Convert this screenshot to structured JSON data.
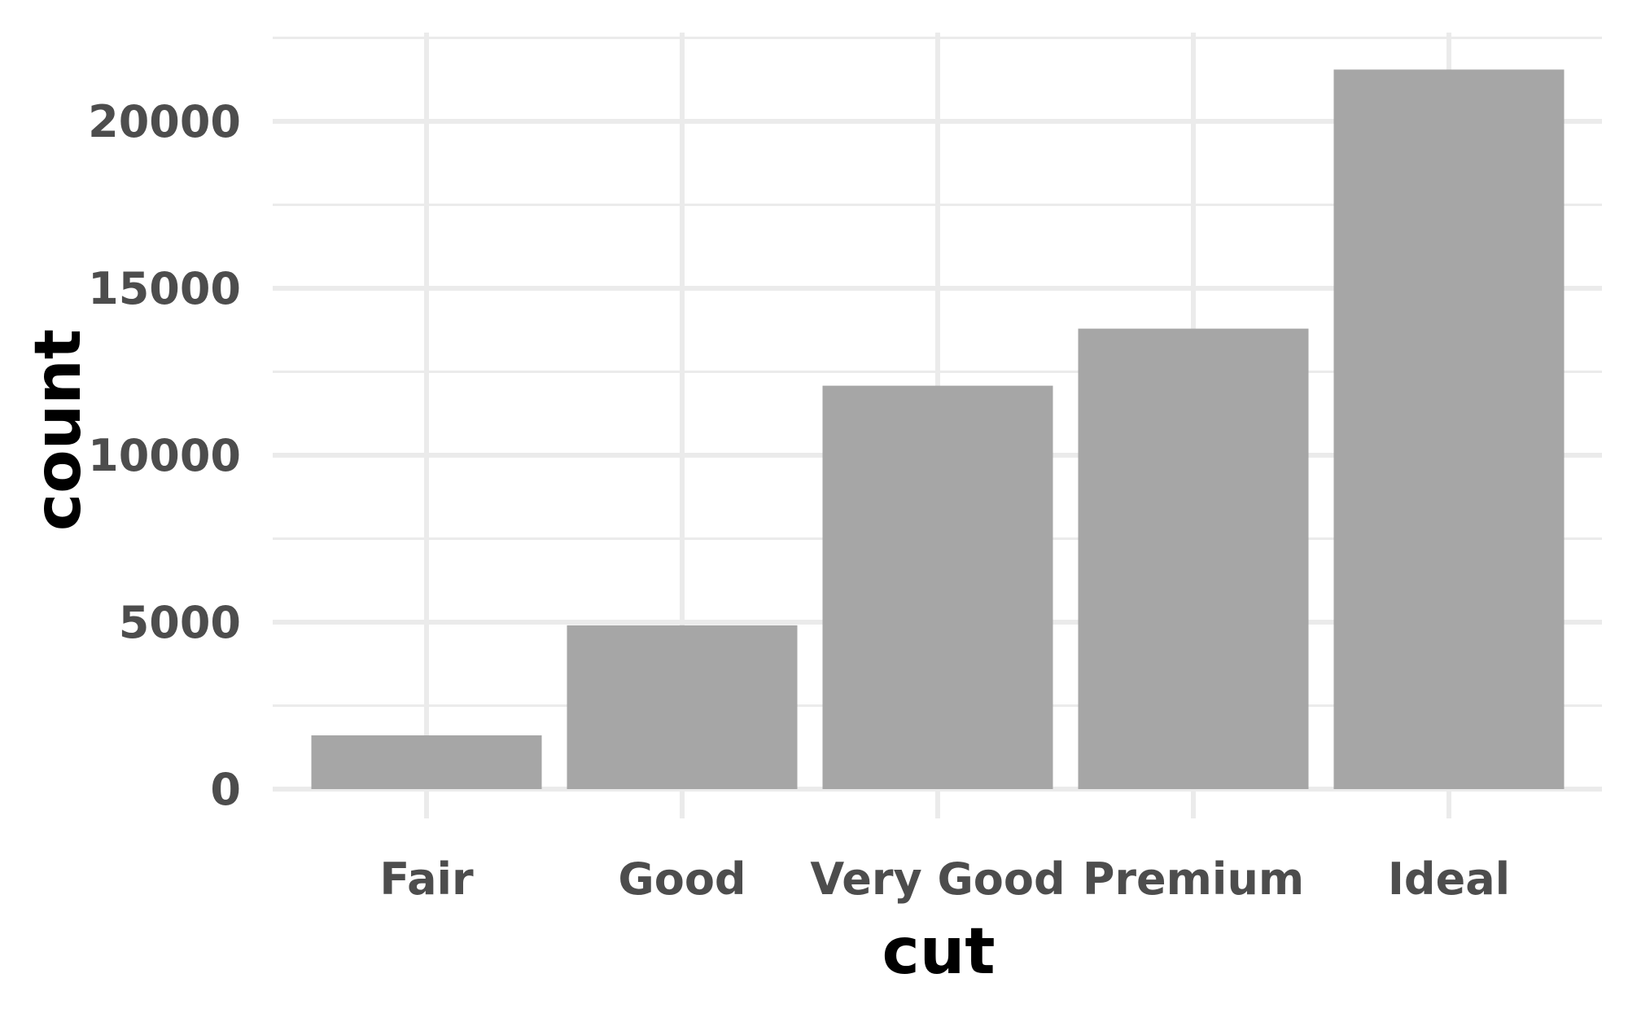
{
  "colors": {
    "background": "#ffffff",
    "grid": "#ebebeb",
    "bar": "#a6a6a6",
    "tick_text": "#4d4d4d",
    "title_text": "#000000"
  },
  "chart_data": {
    "type": "bar",
    "categories": [
      "Fair",
      "Good",
      "Very Good",
      "Premium",
      "Ideal"
    ],
    "values": [
      1610,
      4906,
      12082,
      13791,
      21551
    ],
    "title": "",
    "xlabel": "cut",
    "ylabel": "count",
    "ylim": [
      0,
      22500
    ],
    "yticks": [
      0,
      5000,
      10000,
      15000,
      20000
    ],
    "ytick_labels": [
      "0",
      "5000",
      "10000",
      "15000",
      "20000"
    ],
    "grid": true,
    "legend": "none"
  }
}
